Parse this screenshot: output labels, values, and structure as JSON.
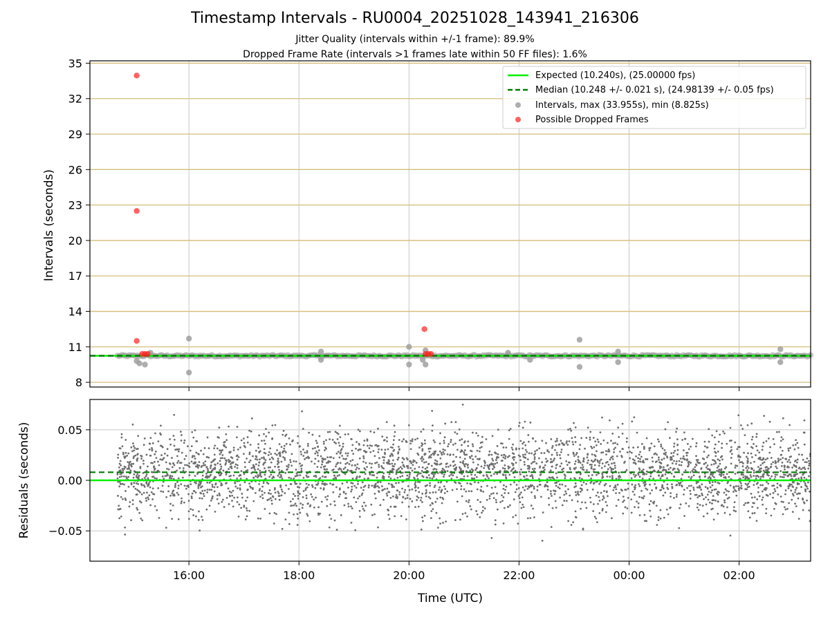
{
  "chart_data": [
    {
      "type": "scatter",
      "title": "Timestamp Intervals - RU0004_20251028_143941_216306",
      "subtitle_jitter": "Jitter Quality (intervals within +/-1 frame): 89.9%",
      "subtitle_dropped": "Dropped Frame Rate (intervals >1 frames late within 50 FF files): 1.6%",
      "xlabel": "",
      "ylabel": "Intervals (seconds)",
      "x_range_hours": [
        14.2,
        27.3
      ],
      "ylim": [
        7.6,
        35.2
      ],
      "y_ticks": [
        8,
        11,
        14,
        17,
        20,
        23,
        26,
        29,
        32,
        35
      ],
      "y_tick_labels": [
        "8",
        "11",
        "14",
        "17",
        "20",
        "23",
        "26",
        "29",
        "32",
        "35"
      ],
      "grid": "both",
      "legend_position": "top-right",
      "legend": [
        "Expected (10.240s), (25.00000 fps)",
        "Median (10.248 +/- 0.021 s), (24.98139 +/- 0.05 fps)",
        "Intervals, max (33.955s), min (8.825s)",
        "Possible Dropped Frames"
      ],
      "expected_interval": 10.24,
      "median_interval": 10.248,
      "intervals_baseline": {
        "start_hour": 14.7,
        "end_hour": 27.3,
        "value": 10.24
      },
      "interval_outliers": [
        {
          "x": 15.05,
          "y": 9.8
        },
        {
          "x": 15.1,
          "y": 9.6
        },
        {
          "x": 15.2,
          "y": 9.5
        },
        {
          "x": 15.3,
          "y": 10.5
        },
        {
          "x": 16.0,
          "y": 11.7
        },
        {
          "x": 16.0,
          "y": 8.825
        },
        {
          "x": 18.4,
          "y": 10.6
        },
        {
          "x": 18.4,
          "y": 9.9
        },
        {
          "x": 20.0,
          "y": 11.0
        },
        {
          "x": 20.0,
          "y": 9.5
        },
        {
          "x": 20.3,
          "y": 10.7
        },
        {
          "x": 20.3,
          "y": 9.5
        },
        {
          "x": 20.25,
          "y": 9.9
        },
        {
          "x": 23.1,
          "y": 11.6
        },
        {
          "x": 23.1,
          "y": 9.3
        },
        {
          "x": 23.8,
          "y": 10.6
        },
        {
          "x": 23.8,
          "y": 9.7
        },
        {
          "x": 26.75,
          "y": 10.8
        },
        {
          "x": 26.75,
          "y": 9.7
        },
        {
          "x": 22.2,
          "y": 9.9
        },
        {
          "x": 21.8,
          "y": 10.5
        }
      ],
      "dropped_frames": [
        {
          "x": 15.05,
          "y": 33.955
        },
        {
          "x": 15.05,
          "y": 22.5
        },
        {
          "x": 15.05,
          "y": 11.5
        },
        {
          "x": 15.15,
          "y": 10.4
        },
        {
          "x": 15.2,
          "y": 10.4
        },
        {
          "x": 15.25,
          "y": 10.4
        },
        {
          "x": 20.28,
          "y": 12.5
        },
        {
          "x": 20.3,
          "y": 10.4
        },
        {
          "x": 20.35,
          "y": 10.4
        },
        {
          "x": 20.4,
          "y": 10.4
        }
      ]
    },
    {
      "type": "scatter",
      "xlabel": "Time (UTC)",
      "ylabel": "Residuals (seconds)",
      "x_range_hours": [
        14.2,
        27.3
      ],
      "ylim": [
        -0.08,
        0.08
      ],
      "y_ticks": [
        -0.05,
        0.0,
        0.05
      ],
      "y_tick_labels": [
        "−0.05",
        "0.00",
        "0.05"
      ],
      "x_ticks_hours": [
        16,
        18,
        20,
        22,
        24,
        26
      ],
      "x_tick_labels": [
        "16:00",
        "18:00",
        "20:00",
        "22:00",
        "00:00",
        "02:00"
      ],
      "grid": "both",
      "expected_residual": 0.0,
      "median_residual": 0.008,
      "residual_points": {
        "count": 3400,
        "start_hour": 14.7,
        "end_hour": 27.3,
        "center": 0.008,
        "spread": 0.03
      }
    }
  ],
  "colors": {
    "expected": "#00ee00",
    "median": "#007a00",
    "intervals": "#9a9a9a",
    "dropped": "#ff2020",
    "residuals": "#6e6e6e",
    "hgrid_top": "#d4bb78",
    "grid": "#c8c8c8"
  }
}
